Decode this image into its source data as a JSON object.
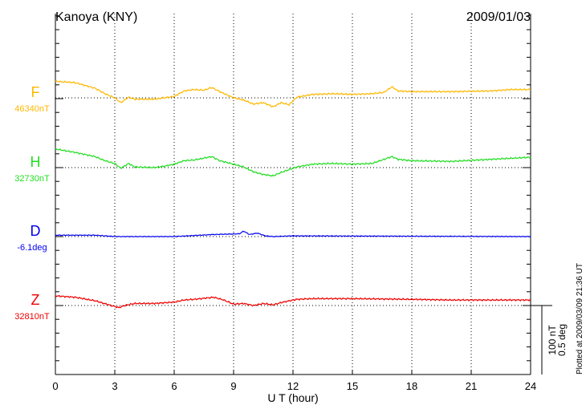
{
  "chart_data": {
    "type": "line",
    "title": "Kanoya (KNY)",
    "date": "2009/01/03",
    "xlabel": "U T (hour)",
    "xlim": [
      0,
      24
    ],
    "xticks": [
      0,
      3,
      6,
      9,
      12,
      15,
      18,
      21,
      24
    ],
    "grid": true,
    "scale_bar": {
      "nT": "100 nT",
      "deg": "0.5 deg",
      "nT_value": 100,
      "deg_value": 0.5
    },
    "plotted_note": "Plotted at 2009/03/09 21:36 UT",
    "series": [
      {
        "name": "F",
        "baseline_label": "46340nT",
        "unit": "nT",
        "color": "#ffb800",
        "x": [
          0,
          1,
          2,
          2.5,
          3,
          3.3,
          3.7,
          4,
          5,
          5.5,
          6,
          6.5,
          7,
          7.5,
          7.9,
          8.3,
          9,
          9.5,
          10,
          10.5,
          11,
          11.4,
          11.8,
          12.2,
          13,
          14,
          15,
          16,
          16.6,
          17,
          17.3,
          18,
          20,
          22,
          23,
          24
        ],
        "y": [
          24,
          22,
          14,
          6,
          0,
          -7,
          1,
          -2,
          -2,
          0,
          2,
          10,
          12,
          11,
          15,
          9,
          0,
          -3,
          -9,
          -7,
          -13,
          -7,
          -10,
          1,
          5,
          6,
          5,
          6,
          8,
          16,
          10,
          9,
          9,
          10,
          12,
          12
        ]
      },
      {
        "name": "H",
        "baseline_label": "32730nT",
        "unit": "nT",
        "color": "#22dd22",
        "x": [
          0,
          1,
          2,
          2.5,
          3,
          3.3,
          3.7,
          4,
          5,
          5.5,
          6,
          6.5,
          7,
          7.9,
          8.3,
          9,
          9.5,
          10,
          10.5,
          11,
          11.4,
          11.8,
          12.2,
          13,
          14,
          15,
          16,
          17,
          17.3,
          18,
          20,
          22,
          24
        ],
        "y": [
          27,
          22,
          16,
          10,
          6,
          -1,
          6,
          1,
          0,
          2,
          5,
          10,
          11,
          16,
          10,
          5,
          1,
          -6,
          -10,
          -12,
          -7,
          -3,
          1,
          5,
          6,
          5,
          6,
          16,
          12,
          10,
          9,
          12,
          15
        ]
      },
      {
        "name": "D",
        "baseline_label": "-6.1deg",
        "unit": "deg",
        "color": "#0000ee",
        "x": [
          0,
          2,
          3,
          6,
          8,
          9.3,
          9.5,
          9.8,
          10.2,
          10.6,
          11,
          12,
          24
        ],
        "y": [
          0.01,
          0.01,
          0,
          0,
          0.015,
          0.02,
          0.04,
          0.015,
          0.025,
          0.005,
          0,
          0.005,
          0
        ]
      },
      {
        "name": "Z",
        "baseline_label": "32810nT",
        "unit": "nT",
        "color": "#ee0000",
        "x": [
          0,
          1,
          2,
          2.7,
          3.2,
          3.5,
          4,
          5,
          6,
          6.5,
          7,
          8,
          8.5,
          9,
          9.5,
          10,
          10.5,
          11,
          11.5,
          12.2,
          13,
          15,
          18,
          20,
          24
        ],
        "y": [
          14,
          12,
          7,
          1,
          -3,
          0,
          3,
          3,
          5,
          8,
          9,
          12,
          8,
          2,
          3,
          0,
          3,
          1,
          5,
          9,
          10,
          10,
          9,
          8,
          8
        ]
      }
    ]
  }
}
